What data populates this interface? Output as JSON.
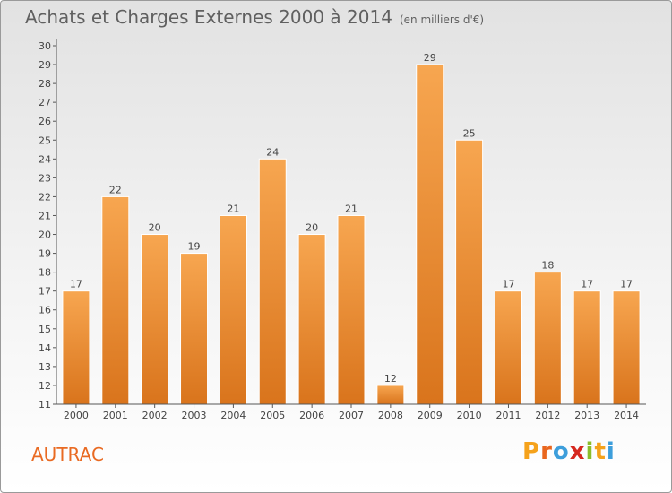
{
  "header": {
    "title": "Achats et Charges Externes 2000 à 2014",
    "subtitle": "(en milliers d'€)"
  },
  "footer": {
    "commune": "AUTRAC",
    "logo_letters": [
      "P",
      "r",
      "o",
      "x",
      "i",
      "t",
      "i"
    ],
    "logo_colors": [
      "#f5a21b",
      "#e9661e",
      "#3d9edb",
      "#d6281f",
      "#8bbd2a",
      "#f5a21b",
      "#3d9edb"
    ]
  },
  "chart_data": {
    "type": "bar",
    "title": "Achats et Charges Externes 2000 à 2014",
    "subtitle": "(en milliers d'€)",
    "xlabel": "",
    "ylabel": "",
    "categories": [
      "2000",
      "2001",
      "2002",
      "2003",
      "2004",
      "2005",
      "2006",
      "2007",
      "2008",
      "2009",
      "2010",
      "2011",
      "2012",
      "2013",
      "2014"
    ],
    "values": [
      17,
      22,
      20,
      19,
      21,
      24,
      20,
      21,
      12,
      29,
      25,
      17,
      18,
      17,
      17
    ],
    "ylim": [
      11,
      30
    ],
    "yticks": [
      11,
      12,
      13,
      14,
      15,
      16,
      17,
      18,
      19,
      20,
      21,
      22,
      23,
      24,
      25,
      26,
      27,
      28,
      29,
      30
    ],
    "grid": false,
    "bar_color_top": "#f7a650",
    "bar_color_bottom": "#d9741c"
  }
}
